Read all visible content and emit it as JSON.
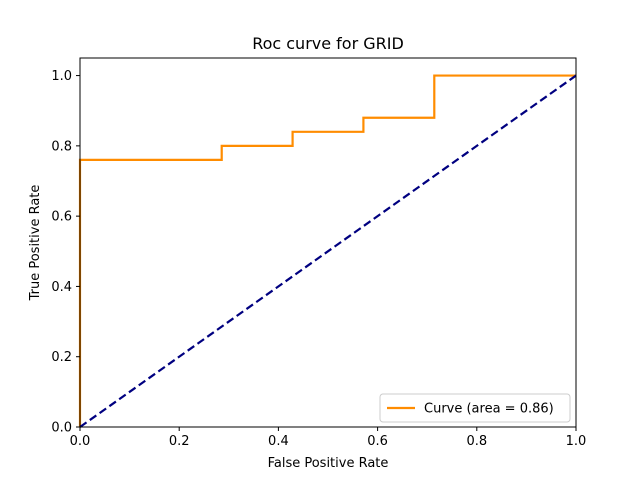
{
  "chart_data": {
    "type": "line",
    "title": "Roc curve for GRID",
    "xlabel": "False Positive Rate",
    "ylabel": "True Positive Rate",
    "xlim": [
      0.0,
      1.0
    ],
    "ylim": [
      0.0,
      1.05
    ],
    "x_ticks": [
      "0.0",
      "0.2",
      "0.4",
      "0.6",
      "0.8",
      "1.0"
    ],
    "y_ticks": [
      "0.0",
      "0.2",
      "0.4",
      "0.6",
      "0.8",
      "1.0"
    ],
    "grid": false,
    "legend_position": "lower-right",
    "series": [
      {
        "name": "Curve (area = 0.86)",
        "color": "#ff8c00",
        "style": "solid",
        "x": [
          0.0,
          0.0,
          0.0,
          0.2857,
          0.2857,
          0.4286,
          0.4286,
          0.5714,
          0.5714,
          0.7143,
          0.7143,
          1.0
        ],
        "y": [
          0.0,
          0.76,
          0.76,
          0.76,
          0.8,
          0.8,
          0.84,
          0.84,
          0.88,
          0.88,
          1.0,
          1.0
        ]
      },
      {
        "color": "#000080",
        "style": "dashed",
        "x": [
          0.0,
          1.0
        ],
        "y": [
          0.0,
          1.0
        ]
      }
    ]
  }
}
